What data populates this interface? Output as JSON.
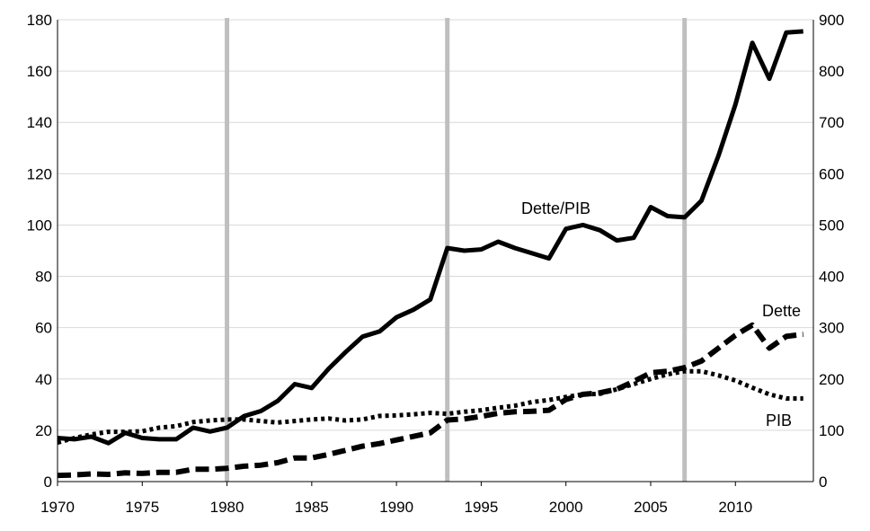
{
  "chart_data": {
    "type": "line",
    "x": [
      1970,
      1971,
      1972,
      1973,
      1974,
      1975,
      1976,
      1977,
      1978,
      1979,
      1980,
      1981,
      1982,
      1983,
      1984,
      1985,
      1986,
      1987,
      1988,
      1989,
      1990,
      1991,
      1992,
      1993,
      1994,
      1995,
      1996,
      1997,
      1998,
      1999,
      2000,
      2001,
      2002,
      2003,
      2004,
      2005,
      2006,
      2007,
      2008,
      2009,
      2010,
      2011,
      2012,
      2013,
      2014
    ],
    "xticks": [
      1970,
      1975,
      1980,
      1985,
      1990,
      1995,
      2000,
      2005,
      2010
    ],
    "xlim": [
      1970,
      2014.6
    ],
    "y_left": {
      "ylim": [
        0,
        180
      ],
      "ticks": [
        0,
        20,
        40,
        60,
        80,
        100,
        120,
        140,
        160,
        180
      ]
    },
    "y_right": {
      "ylim": [
        0,
        900
      ],
      "ticks": [
        0,
        100,
        200,
        300,
        400,
        500,
        600,
        700,
        800,
        900
      ]
    },
    "vertical_lines": [
      1980,
      1993,
      2007
    ],
    "series": [
      {
        "name": "Dette/PIB",
        "axis": "left",
        "style": "solid",
        "values": [
          17,
          16.5,
          17.5,
          15,
          19,
          17,
          16.5,
          16.5,
          21,
          19.5,
          21,
          25.5,
          27.5,
          31.5,
          38,
          36.5,
          44,
          50.5,
          56.5,
          58.5,
          64,
          67,
          71,
          91,
          90,
          90.5,
          93.5,
          91,
          89,
          87,
          98.5,
          100,
          98,
          94,
          95,
          107,
          103.5,
          103,
          109.5,
          127,
          147,
          171,
          157,
          175,
          175.5
        ]
      },
      {
        "name": "Dette",
        "axis": "right",
        "style": "dashed",
        "values": [
          12,
          13,
          15,
          14,
          17,
          16,
          18,
          18,
          24,
          24,
          26,
          30,
          32,
          37,
          46,
          46,
          53,
          61,
          69,
          74,
          81,
          88,
          95,
          120,
          122,
          127,
          133,
          136,
          137,
          139,
          160,
          170,
          173,
          180,
          195,
          212,
          215,
          222,
          235,
          260,
          285,
          305,
          260,
          283,
          287
        ]
      },
      {
        "name": "PIB",
        "axis": "right",
        "style": "dotted",
        "values": [
          76,
          85,
          92,
          97,
          97,
          98,
          105,
          108,
          116,
          119,
          121,
          121,
          118,
          115,
          118,
          121,
          123,
          119,
          121,
          128,
          129,
          131,
          134,
          132,
          136,
          139,
          144,
          148,
          155,
          159,
          165,
          170,
          171,
          180,
          190,
          200,
          209,
          215,
          215,
          207,
          197,
          183,
          170,
          162,
          162
        ]
      }
    ]
  }
}
